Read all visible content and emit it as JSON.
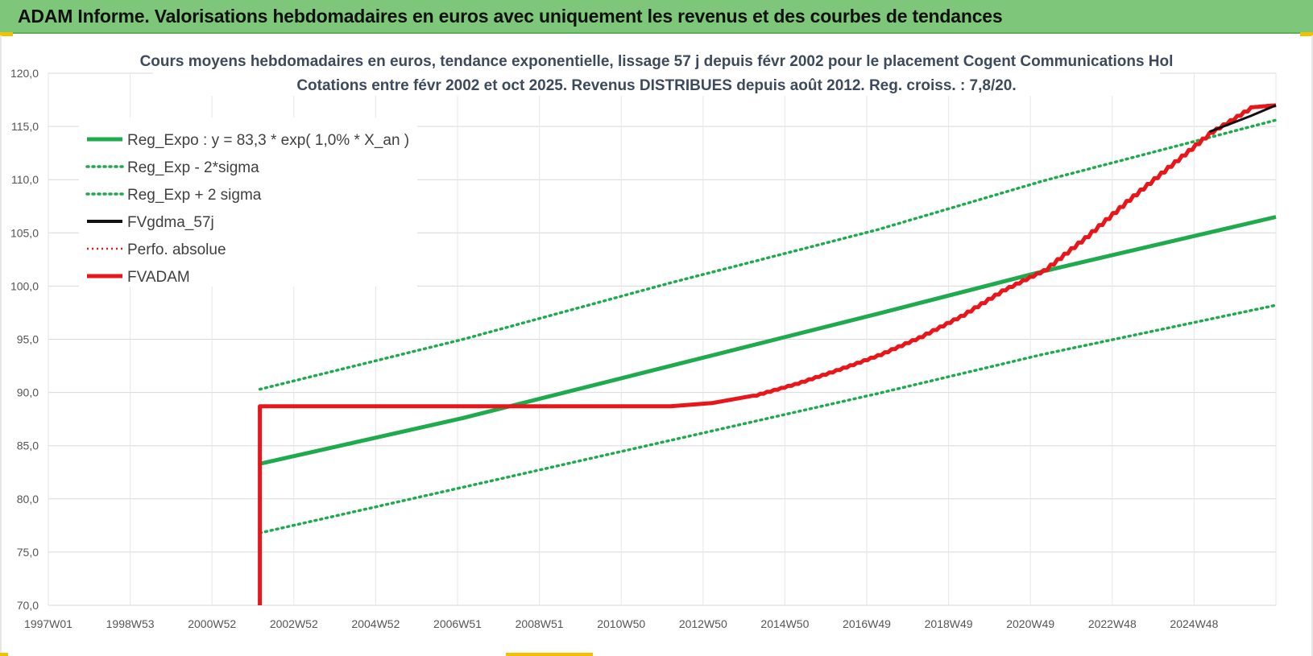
{
  "header": {
    "title": "ADAM Informe. Valorisations hebdomadaires en euros avec uniquement les revenus et des courbes de tendances"
  },
  "colors": {
    "header_bg": "#7dc67a",
    "trend_green": "#1faa4e",
    "adam_red": "#e8161b",
    "ma_black": "#111111",
    "accent_yellow": "#f2c200"
  },
  "chart_data": {
    "type": "line",
    "title_lines": [
      "Cours moyens hebdomadaires en euros, tendance exponentielle, lissage 57 j depuis févr 2002 pour le placement Cogent Communications Hol",
      "Cotations entre févr 2002 et oct 2025. Revenus DISTRIBUES depuis août 2012. Reg. croiss. : 7,8/20."
    ],
    "x_tick_labels": [
      "1997W01",
      "1998W53",
      "2000W52",
      "2002W52",
      "2004W52",
      "2006W51",
      "2008W51",
      "2010W50",
      "2012W50",
      "2014W50",
      "2016W49",
      "2018W49",
      "2020W49",
      "2022W48",
      "2024W48"
    ],
    "x_range": [
      1997.0,
      2026.6
    ],
    "y_ticks": [
      "120,0",
      "115,0",
      "110,0",
      "105,0",
      "100,0",
      "95,0",
      "90,0",
      "85,0",
      "80,0",
      "75,0",
      "70,0"
    ],
    "ylim": [
      70,
      120
    ],
    "grid": true,
    "legend_position": "top-left",
    "series": [
      {
        "name": "Reg_Expo : y = 83,3 * exp( 1,0% *  X_an )",
        "style": "solid-green",
        "points": [
          [
            2002.1,
            83.3
          ],
          [
            2007.0,
            87.6
          ],
          [
            2012.0,
            92.5
          ],
          [
            2017.0,
            97.4
          ],
          [
            2021.0,
            101.4
          ],
          [
            2026.6,
            106.5
          ]
        ]
      },
      {
        "name": "Reg_Exp - 2*sigma",
        "style": "dotted-green",
        "points": [
          [
            2002.1,
            76.8
          ],
          [
            2007.0,
            81.1
          ],
          [
            2012.0,
            85.5
          ],
          [
            2017.0,
            89.9
          ],
          [
            2021.0,
            93.6
          ],
          [
            2026.6,
            98.2
          ]
        ]
      },
      {
        "name": "Reg_Exp + 2 sigma",
        "style": "dotted-green",
        "points": [
          [
            2002.1,
            90.3
          ],
          [
            2007.0,
            95.0
          ],
          [
            2012.0,
            100.3
          ],
          [
            2017.0,
            105.3
          ],
          [
            2021.0,
            109.9
          ],
          [
            2026.6,
            115.6
          ]
        ]
      },
      {
        "name": "FVgdma_57j",
        "style": "solid-black",
        "points": [
          [
            2025.0,
            114.5
          ],
          [
            2026.0,
            116.0
          ],
          [
            2026.6,
            117.0
          ]
        ]
      },
      {
        "name": "Perfo. absolue",
        "style": "dotted-red",
        "points": []
      },
      {
        "name": "FVADAM",
        "style": "solid-red",
        "points": [
          [
            2002.1,
            70.0
          ],
          [
            2002.1,
            88.7
          ],
          [
            2012.0,
            88.7
          ],
          [
            2013.0,
            89.0
          ],
          [
            2014.0,
            89.7
          ],
          [
            2015.0,
            90.8
          ],
          [
            2016.0,
            92.1
          ],
          [
            2017.0,
            93.5
          ],
          [
            2018.0,
            95.2
          ],
          [
            2019.0,
            97.2
          ],
          [
            2020.0,
            99.6
          ],
          [
            2021.0,
            101.5
          ],
          [
            2022.0,
            104.6
          ],
          [
            2023.0,
            108.0
          ],
          [
            2024.0,
            111.2
          ],
          [
            2025.0,
            114.4
          ],
          [
            2026.0,
            116.8
          ],
          [
            2026.6,
            117.0
          ]
        ]
      }
    ]
  }
}
